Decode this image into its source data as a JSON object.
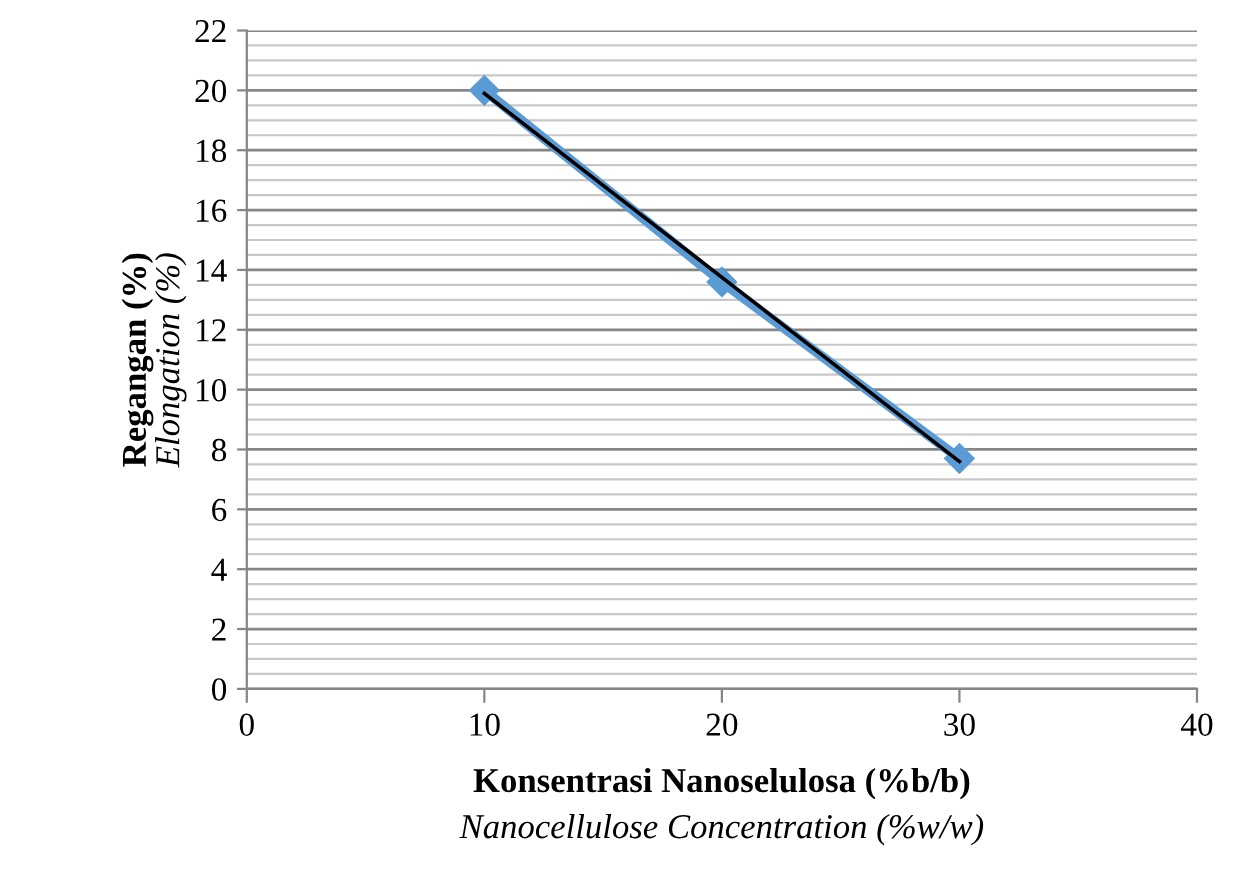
{
  "chart_data": {
    "type": "line",
    "xlabel": "Konsentrasi Nanoselulosa (%b/b)\nNanocellulose Concentration (%w/w)",
    "ylabel": "Regangan (%)\nElongation (%)",
    "x": [
      10,
      20,
      30
    ],
    "series": [
      {
        "color": "#5b9bd5",
        "values": [
          20,
          13.6,
          7.7
        ],
        "marker": "diamond"
      },
      {
        "type": "line",
        "color": "#000000",
        "x": [
          10,
          30
        ],
        "values": [
          19.9,
          7.6
        ],
        "marker": "none"
      }
    ],
    "xlim": [
      0,
      40
    ],
    "xticks": [
      0,
      10,
      20,
      30,
      40
    ],
    "ylim": [
      0,
      22
    ],
    "yticks": [
      0,
      2,
      4,
      6,
      8,
      10,
      12,
      14,
      16,
      18,
      20,
      22
    ],
    "grid": "y",
    "legend": false
  }
}
